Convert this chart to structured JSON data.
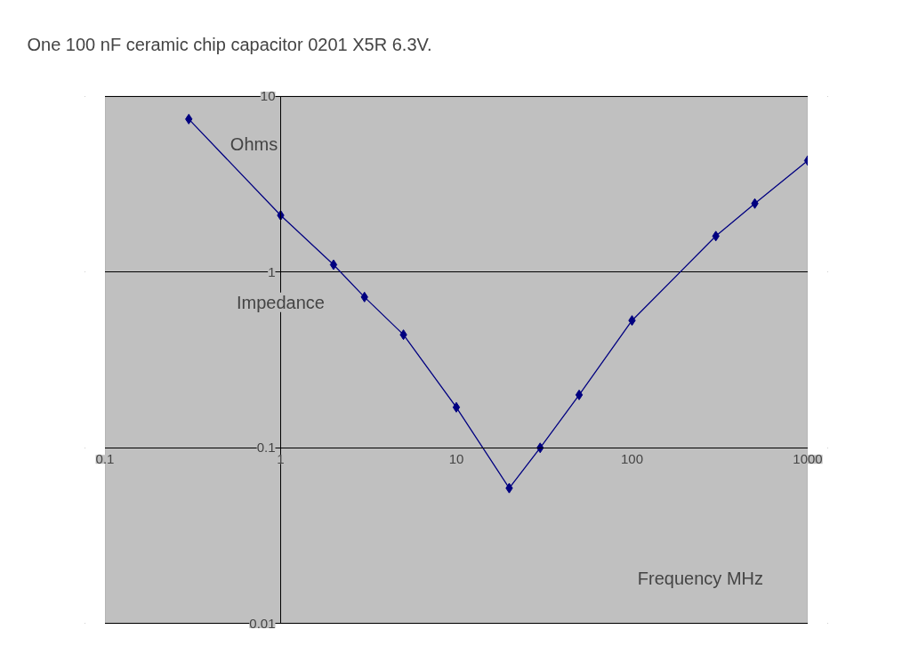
{
  "chart_data": {
    "type": "line",
    "title": "One 100 nF ceramic chip capacitor 0201 X5R 6.3V.",
    "xlabel": "Frequency MHz",
    "ylabel": "Impedance",
    "annotations": [
      "Ohms"
    ],
    "x": [
      0.3,
      1,
      2,
      3,
      5,
      10,
      20,
      30,
      50,
      100,
      300,
      500,
      1000
    ],
    "series": [
      {
        "color": "#000080",
        "values": [
          7.4,
          2.1,
          1.1,
          0.72,
          0.44,
          0.17,
          0.059,
          0.1,
          0.2,
          0.53,
          1.6,
          2.45,
          4.3
        ]
      }
    ],
    "log": "xy",
    "xlim": [
      0.1,
      1000
    ],
    "ylim": [
      0.01,
      10
    ],
    "xticks": [
      0.1,
      1,
      10,
      100,
      1000
    ],
    "yticks": [
      0.01,
      0.1,
      1,
      10
    ],
    "grid": "y",
    "marker": "diamond",
    "line_style": "solid",
    "legend": false
  }
}
